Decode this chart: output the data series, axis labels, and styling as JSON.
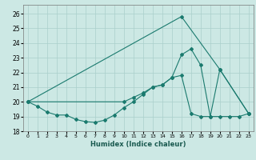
{
  "xlabel": "Humidex (Indice chaleur)",
  "background_color": "#cce8e4",
  "grid_color": "#aacfcb",
  "line_color": "#1a7a6e",
  "xlim": [
    -0.5,
    23.5
  ],
  "ylim": [
    18,
    26.6
  ],
  "yticks": [
    18,
    19,
    20,
    21,
    22,
    23,
    24,
    25,
    26
  ],
  "xticks": [
    0,
    1,
    2,
    3,
    4,
    5,
    6,
    7,
    8,
    9,
    10,
    11,
    12,
    13,
    14,
    15,
    16,
    17,
    18,
    19,
    20,
    21,
    22,
    23
  ],
  "line1_x": [
    0,
    1,
    2,
    3,
    4,
    5,
    6,
    7,
    8,
    9,
    10,
    11,
    12,
    13,
    14,
    15,
    16,
    17,
    18,
    19,
    20,
    21,
    22,
    23
  ],
  "line1_y": [
    20.0,
    19.7,
    19.3,
    19.1,
    19.1,
    18.8,
    18.65,
    18.6,
    18.75,
    19.1,
    19.6,
    20.0,
    20.5,
    21.0,
    21.15,
    21.65,
    21.8,
    19.2,
    19.0,
    19.0,
    19.0,
    19.0,
    19.0,
    19.2
  ],
  "line2_x": [
    0,
    10,
    11,
    12,
    13,
    14,
    15,
    16,
    17,
    18,
    19,
    20,
    23
  ],
  "line2_y": [
    20.0,
    20.0,
    20.3,
    20.6,
    21.0,
    21.15,
    21.65,
    23.2,
    23.6,
    22.5,
    19.0,
    22.2,
    19.2
  ],
  "line3_x": [
    0,
    16,
    20,
    23
  ],
  "line3_y": [
    20.0,
    25.8,
    22.2,
    19.2
  ]
}
